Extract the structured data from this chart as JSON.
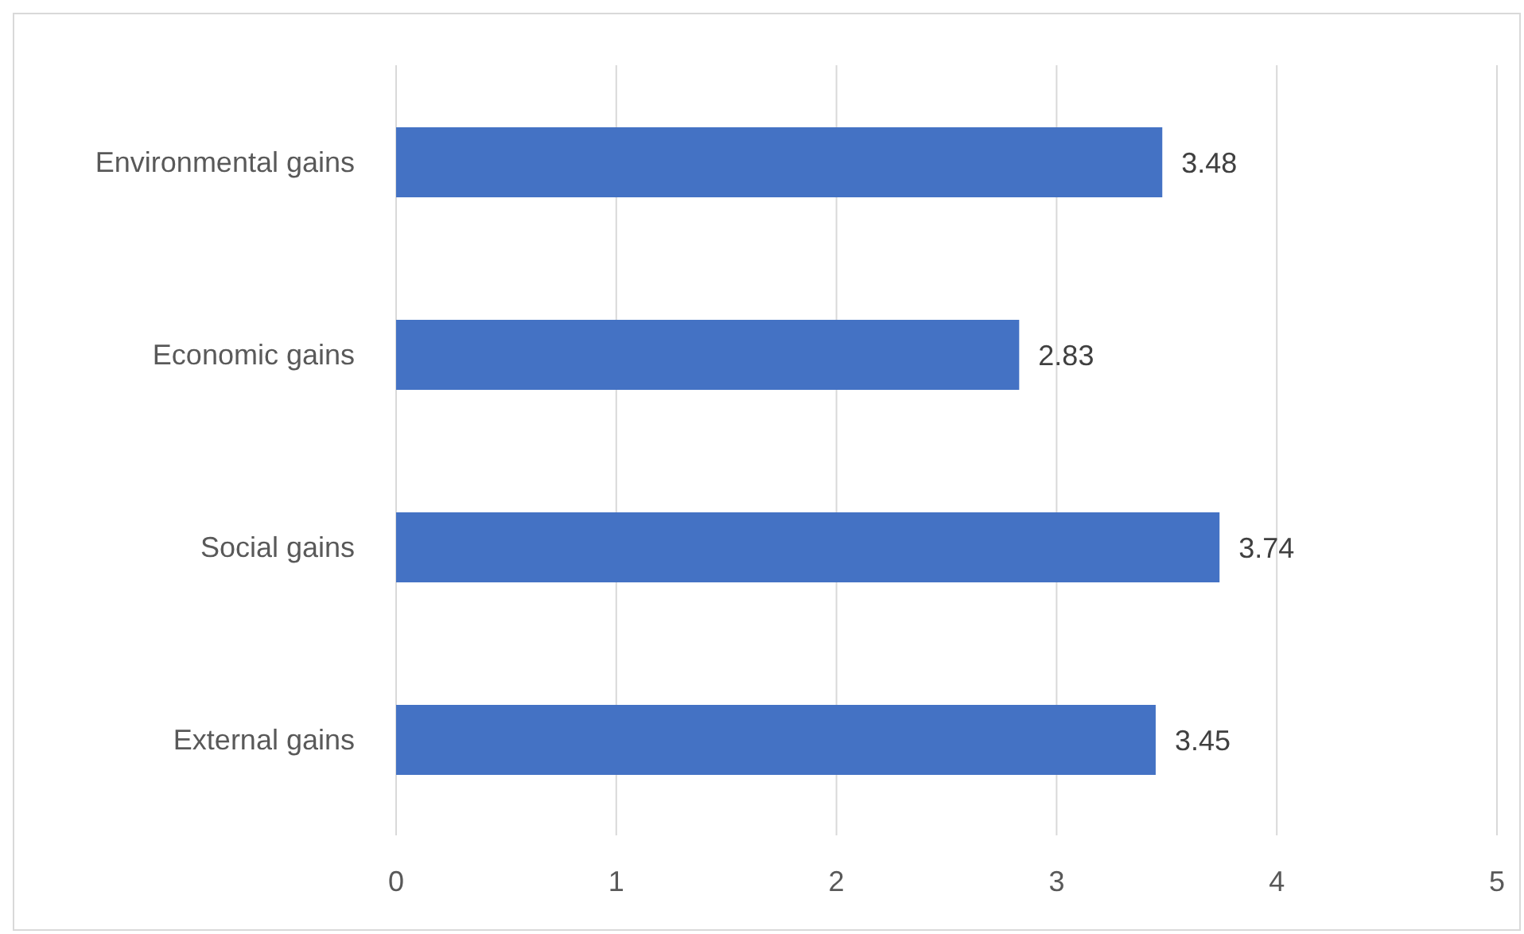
{
  "chart_data": {
    "type": "bar",
    "orientation": "horizontal",
    "categories": [
      "Environmental gains",
      "Economic gains",
      "Social gains",
      "External gains"
    ],
    "values": [
      3.48,
      2.83,
      3.74,
      3.45
    ],
    "color": "#4472c4",
    "xlim": [
      0,
      5
    ],
    "xticks": [
      0,
      1,
      2,
      3,
      4,
      5
    ],
    "grid": "x",
    "data_labels": true
  }
}
